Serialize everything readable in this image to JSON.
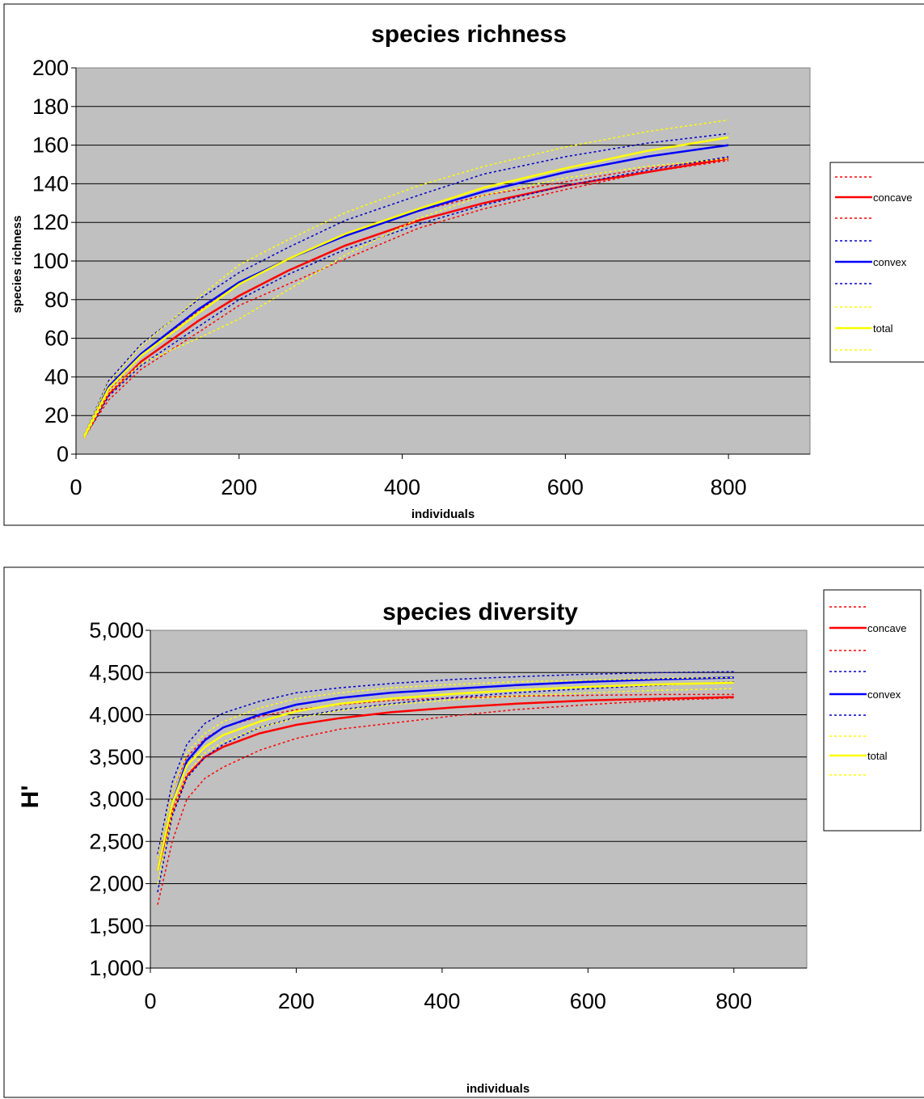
{
  "chart_data": [
    {
      "type": "line",
      "title": "species richness",
      "xlabel": "individuals",
      "ylabel": "species richness",
      "xlim": [
        0,
        900
      ],
      "ylim": [
        0,
        200
      ],
      "xticks": [
        0,
        200,
        400,
        600,
        800
      ],
      "xtick_labels": [
        "0",
        "200",
        "400",
        "600",
        "800"
      ],
      "yticks": [
        0,
        20,
        40,
        60,
        80,
        100,
        120,
        140,
        160,
        180,
        200
      ],
      "ytick_labels": [
        "0",
        "20",
        "40",
        "60",
        "80",
        "100",
        "120",
        "140",
        "160",
        "180",
        "200"
      ],
      "grid": "horizontal",
      "legend_position": "right",
      "background": "#c0c0c0",
      "series": [
        {
          "name": "",
          "color": "#ff0000",
          "dash": "dotted",
          "points": [
            [
              10,
              9
            ],
            [
              40,
              28
            ],
            [
              80,
              44
            ],
            [
              150,
              63
            ],
            [
              200,
              77
            ],
            [
              260,
              88
            ],
            [
              330,
              101
            ],
            [
              420,
              117
            ],
            [
              500,
              127
            ],
            [
              600,
              137
            ],
            [
              700,
              146
            ],
            [
              800,
              152
            ]
          ]
        },
        {
          "name": "concave",
          "color": "#ff0000",
          "dash": "solid",
          "points": [
            [
              10,
              9
            ],
            [
              40,
              31
            ],
            [
              80,
              48
            ],
            [
              150,
              69
            ],
            [
              200,
              82
            ],
            [
              260,
              95
            ],
            [
              330,
              108
            ],
            [
              420,
              121
            ],
            [
              500,
              130
            ],
            [
              600,
              139
            ],
            [
              700,
              146
            ],
            [
              800,
              153
            ]
          ]
        },
        {
          "name": "",
          "color": "#ff0000",
          "dash": "dotted",
          "points": [
            [
              10,
              8
            ],
            [
              40,
              33
            ],
            [
              80,
              51
            ],
            [
              150,
              74
            ],
            [
              200,
              89
            ],
            [
              260,
              101
            ],
            [
              330,
              114
            ],
            [
              420,
              126
            ],
            [
              500,
              134
            ],
            [
              600,
              141
            ],
            [
              700,
              148
            ],
            [
              800,
              153
            ]
          ]
        },
        {
          "name": "",
          "color": "#0000cc",
          "dash": "dotted",
          "points": [
            [
              10,
              8
            ],
            [
              40,
              30
            ],
            [
              80,
              46
            ],
            [
              150,
              66
            ],
            [
              200,
              80
            ],
            [
              260,
              93
            ],
            [
              330,
              106
            ],
            [
              420,
              119
            ],
            [
              500,
              129
            ],
            [
              600,
              139
            ],
            [
              700,
              147
            ],
            [
              800,
              154
            ]
          ]
        },
        {
          "name": "convex",
          "color": "#0000ff",
          "dash": "solid",
          "points": [
            [
              10,
              9
            ],
            [
              40,
              35
            ],
            [
              80,
              52
            ],
            [
              150,
              75
            ],
            [
              200,
              89
            ],
            [
              260,
              101
            ],
            [
              330,
              113
            ],
            [
              420,
              126
            ],
            [
              500,
              136
            ],
            [
              600,
              146
            ],
            [
              700,
              154
            ],
            [
              800,
              160
            ]
          ]
        },
        {
          "name": "",
          "color": "#0000cc",
          "dash": "dotted",
          "points": [
            [
              10,
              10
            ],
            [
              40,
              38
            ],
            [
              80,
              57
            ],
            [
              150,
              80
            ],
            [
              200,
              94
            ],
            [
              260,
              107
            ],
            [
              330,
              121
            ],
            [
              420,
              134
            ],
            [
              500,
              145
            ],
            [
              600,
              154
            ],
            [
              700,
              161
            ],
            [
              800,
              166
            ]
          ]
        },
        {
          "name": "",
          "color": "#ffff00",
          "dash": "dotted",
          "points": [
            [
              10,
              8
            ],
            [
              40,
              32
            ],
            [
              80,
              47
            ],
            [
              150,
              60
            ],
            [
              200,
              70
            ],
            [
              260,
              85
            ],
            [
              330,
              103
            ],
            [
              420,
              122
            ],
            [
              500,
              134
            ],
            [
              600,
              143
            ],
            [
              700,
              149
            ],
            [
              800,
              153
            ]
          ]
        },
        {
          "name": "total",
          "color": "#ffff00",
          "dash": "solid",
          "points": [
            [
              10,
              9
            ],
            [
              40,
              34
            ],
            [
              80,
              51
            ],
            [
              150,
              73
            ],
            [
              200,
              88
            ],
            [
              260,
              101
            ],
            [
              330,
              114
            ],
            [
              420,
              127
            ],
            [
              500,
              138
            ],
            [
              600,
              148
            ],
            [
              700,
              157
            ],
            [
              800,
              164
            ]
          ]
        },
        {
          "name": "",
          "color": "#ffff00",
          "dash": "dotted",
          "points": [
            [
              10,
              10
            ],
            [
              40,
              37
            ],
            [
              80,
              56
            ],
            [
              150,
              81
            ],
            [
              200,
              98
            ],
            [
              260,
              111
            ],
            [
              330,
              125
            ],
            [
              420,
              139
            ],
            [
              500,
              149
            ],
            [
              600,
              159
            ],
            [
              700,
              167
            ],
            [
              800,
              173
            ]
          ]
        }
      ]
    },
    {
      "type": "line",
      "title": "species diversity",
      "xlabel": "individuals",
      "ylabel": "H'",
      "xlim": [
        0,
        900
      ],
      "ylim": [
        1000,
        5000
      ],
      "xticks": [
        0,
        200,
        400,
        600,
        800
      ],
      "xtick_labels": [
        "0",
        "200",
        "400",
        "600",
        "800"
      ],
      "yticks": [
        1000,
        1500,
        2000,
        2500,
        3000,
        3500,
        4000,
        4500,
        5000
      ],
      "ytick_labels": [
        "1,000",
        "1,500",
        "2,000",
        "2,500",
        "3,000",
        "3,500",
        "4,000",
        "4,500",
        "5,000"
      ],
      "grid": "horizontal",
      "legend_position": "right",
      "background": "#c0c0c0",
      "series": [
        {
          "name": "",
          "color": "#ff0000",
          "dash": "dotted",
          "points": [
            [
              10,
              1750
            ],
            [
              30,
              2500
            ],
            [
              50,
              3000
            ],
            [
              75,
              3250
            ],
            [
              100,
              3380
            ],
            [
              150,
              3580
            ],
            [
              200,
              3720
            ],
            [
              260,
              3830
            ],
            [
              330,
              3900
            ],
            [
              420,
              3990
            ],
            [
              500,
              4060
            ],
            [
              600,
              4120
            ],
            [
              700,
              4170
            ],
            [
              800,
              4200
            ]
          ]
        },
        {
          "name": "concave",
          "color": "#ff0000",
          "dash": "solid",
          "points": [
            [
              10,
              2150
            ],
            [
              30,
              2850
            ],
            [
              50,
              3280
            ],
            [
              75,
              3500
            ],
            [
              100,
              3620
            ],
            [
              150,
              3780
            ],
            [
              200,
              3880
            ],
            [
              260,
              3960
            ],
            [
              330,
              4030
            ],
            [
              420,
              4090
            ],
            [
              500,
              4130
            ],
            [
              600,
              4170
            ],
            [
              700,
              4190
            ],
            [
              800,
              4210
            ]
          ]
        },
        {
          "name": "",
          "color": "#ff0000",
          "dash": "dotted",
          "points": [
            [
              10,
              2300
            ],
            [
              30,
              3100
            ],
            [
              50,
              3500
            ],
            [
              75,
              3720
            ],
            [
              100,
              3850
            ],
            [
              150,
              3980
            ],
            [
              200,
              4060
            ],
            [
              260,
              4120
            ],
            [
              330,
              4170
            ],
            [
              420,
              4200
            ],
            [
              500,
              4220
            ],
            [
              600,
              4230
            ],
            [
              700,
              4240
            ],
            [
              800,
              4240
            ]
          ]
        },
        {
          "name": "",
          "color": "#0000cc",
          "dash": "dotted",
          "points": [
            [
              10,
              1900
            ],
            [
              30,
              2800
            ],
            [
              50,
              3250
            ],
            [
              75,
              3500
            ],
            [
              100,
              3650
            ],
            [
              150,
              3850
            ],
            [
              200,
              3970
            ],
            [
              260,
              4060
            ],
            [
              330,
              4130
            ],
            [
              420,
              4210
            ],
            [
              500,
              4260
            ],
            [
              600,
              4310
            ],
            [
              700,
              4350
            ],
            [
              800,
              4390
            ]
          ]
        },
        {
          "name": "convex",
          "color": "#0000ff",
          "dash": "solid",
          "points": [
            [
              10,
              2150
            ],
            [
              30,
              2950
            ],
            [
              50,
              3450
            ],
            [
              75,
              3700
            ],
            [
              100,
              3850
            ],
            [
              150,
              4000
            ],
            [
              200,
              4120
            ],
            [
              260,
              4200
            ],
            [
              330,
              4260
            ],
            [
              420,
              4310
            ],
            [
              500,
              4350
            ],
            [
              600,
              4390
            ],
            [
              700,
              4420
            ],
            [
              800,
              4440
            ]
          ]
        },
        {
          "name": "",
          "color": "#0000cc",
          "dash": "dotted",
          "points": [
            [
              10,
              2350
            ],
            [
              30,
              3200
            ],
            [
              50,
              3650
            ],
            [
              75,
              3900
            ],
            [
              100,
              4020
            ],
            [
              150,
              4160
            ],
            [
              200,
              4260
            ],
            [
              260,
              4320
            ],
            [
              330,
              4370
            ],
            [
              420,
              4420
            ],
            [
              500,
              4450
            ],
            [
              600,
              4480
            ],
            [
              700,
              4500
            ],
            [
              800,
              4510
            ]
          ]
        },
        {
          "name": "",
          "color": "#ffff00",
          "dash": "dotted",
          "points": [
            [
              10,
              2000
            ],
            [
              30,
              2850
            ],
            [
              50,
              3300
            ],
            [
              75,
              3550
            ],
            [
              100,
              3680
            ],
            [
              150,
              3850
            ],
            [
              200,
              3960
            ],
            [
              260,
              4050
            ],
            [
              330,
              4120
            ],
            [
              420,
              4180
            ],
            [
              500,
              4220
            ],
            [
              600,
              4260
            ],
            [
              700,
              4290
            ],
            [
              800,
              4310
            ]
          ]
        },
        {
          "name": "total",
          "color": "#ffff00",
          "dash": "solid",
          "points": [
            [
              10,
              2150
            ],
            [
              30,
              2950
            ],
            [
              50,
              3400
            ],
            [
              75,
              3620
            ],
            [
              100,
              3760
            ],
            [
              150,
              3920
            ],
            [
              200,
              4040
            ],
            [
              260,
              4130
            ],
            [
              330,
              4190
            ],
            [
              420,
              4250
            ],
            [
              500,
              4290
            ],
            [
              600,
              4330
            ],
            [
              700,
              4360
            ],
            [
              800,
              4380
            ]
          ]
        },
        {
          "name": "",
          "color": "#ffff00",
          "dash": "dotted",
          "points": [
            [
              10,
              2300
            ],
            [
              30,
              3100
            ],
            [
              50,
              3550
            ],
            [
              75,
              3780
            ],
            [
              100,
              3920
            ],
            [
              150,
              4080
            ],
            [
              200,
              4190
            ],
            [
              260,
              4260
            ],
            [
              330,
              4320
            ],
            [
              420,
              4360
            ],
            [
              500,
              4390
            ],
            [
              600,
              4410
            ],
            [
              700,
              4430
            ],
            [
              800,
              4440
            ]
          ]
        }
      ]
    }
  ]
}
